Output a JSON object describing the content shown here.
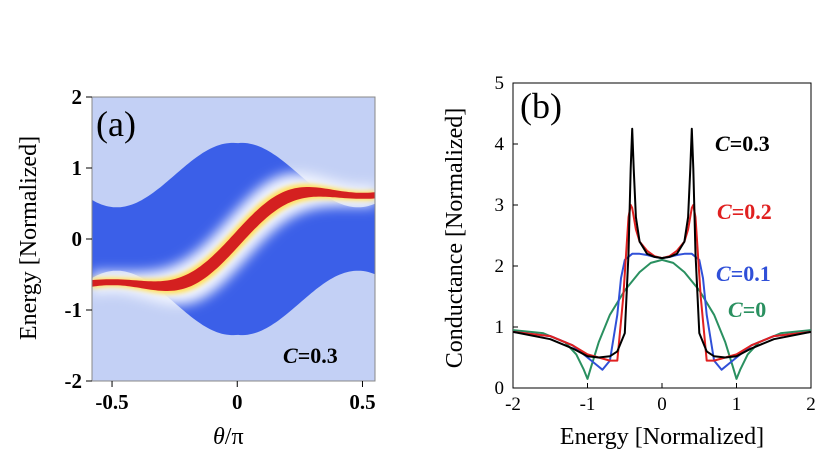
{
  "chart_data": [
    {
      "type": "heatmap",
      "panel_label": "(a)",
      "annotation_italic": "C",
      "annotation_rest": "=0.3",
      "xlabel_italic": "θ",
      "xlabel_rest": "/π",
      "ylabel": "Energy [Normalized]",
      "xlim": [
        -0.58,
        0.55
      ],
      "ylim": [
        -2,
        2
      ],
      "xticks": [
        "-0.5",
        "0",
        "0.5"
      ],
      "xtick_values": [
        -0.5,
        0,
        0.5
      ],
      "yticks": [
        "-2",
        "-1",
        "0",
        "1",
        "2"
      ],
      "ytick_values": [
        -2,
        -1,
        0,
        1,
        2
      ],
      "colors": {
        "low": "#3b5fe8",
        "mid": "#ffffff",
        "high": "#d42020",
        "warm": "#ffe060"
      }
    },
    {
      "type": "line",
      "panel_label": "(b)",
      "xlabel": "Energy [Normalized]",
      "ylabel": "Conductance  [Normalized]",
      "xlim": [
        -2,
        2
      ],
      "ylim": [
        0,
        5
      ],
      "xticks": [
        "-2",
        "-1",
        "0",
        "1",
        "2"
      ],
      "xtick_values": [
        -2,
        -1,
        0,
        1,
        2
      ],
      "yticks": [
        "0",
        "1",
        "2",
        "3",
        "4",
        "5"
      ],
      "ytick_values": [
        0,
        1,
        2,
        3,
        4,
        5
      ],
      "series": [
        {
          "name": "C=0.3",
          "label_italic": "C",
          "label_rest": "=0.3",
          "color": "#000000",
          "x": [
            -2,
            -1.5,
            -1.2,
            -1.0,
            -0.85,
            -0.7,
            -0.6,
            -0.5,
            -0.45,
            -0.42,
            -0.4,
            -0.38,
            -0.35,
            -0.3,
            -0.2,
            -0.1,
            0,
            0.1,
            0.2,
            0.3,
            0.35,
            0.38,
            0.4,
            0.42,
            0.45,
            0.5,
            0.6,
            0.7,
            0.85,
            1.0,
            1.2,
            1.5,
            2
          ],
          "values": [
            0.92,
            0.8,
            0.65,
            0.52,
            0.5,
            0.52,
            0.6,
            0.9,
            2.2,
            3.6,
            4.25,
            3.6,
            2.8,
            2.4,
            2.2,
            2.15,
            2.13,
            2.15,
            2.2,
            2.4,
            2.8,
            3.6,
            4.25,
            3.6,
            2.2,
            0.9,
            0.6,
            0.52,
            0.5,
            0.52,
            0.65,
            0.8,
            0.92
          ]
        },
        {
          "name": "C=0.2",
          "label_italic": "C",
          "label_rest": "=0.2",
          "color": "#e02020",
          "x": [
            -2,
            -1.5,
            -1.2,
            -1.0,
            -0.85,
            -0.7,
            -0.6,
            -0.52,
            -0.45,
            -0.42,
            -0.4,
            -0.35,
            -0.3,
            -0.2,
            -0.1,
            0,
            0.1,
            0.2,
            0.3,
            0.35,
            0.4,
            0.42,
            0.45,
            0.52,
            0.6,
            0.7,
            0.85,
            1.0,
            1.2,
            1.5,
            2
          ],
          "values": [
            0.92,
            0.85,
            0.7,
            0.55,
            0.5,
            0.45,
            0.45,
            1.5,
            2.8,
            3.0,
            2.95,
            2.6,
            2.4,
            2.25,
            2.16,
            2.13,
            2.16,
            2.25,
            2.4,
            2.6,
            2.95,
            3.0,
            2.8,
            1.5,
            0.45,
            0.45,
            0.5,
            0.55,
            0.7,
            0.85,
            0.92
          ]
        },
        {
          "name": "C=0.1",
          "label_italic": "C",
          "label_rest": "=0.1",
          "color": "#3050d8",
          "x": [
            -2,
            -1.5,
            -1.2,
            -1.0,
            -0.9,
            -0.8,
            -0.7,
            -0.6,
            -0.55,
            -0.5,
            -0.4,
            -0.3,
            -0.2,
            -0.1,
            0,
            0.1,
            0.2,
            0.3,
            0.4,
            0.5,
            0.55,
            0.6,
            0.7,
            0.8,
            0.9,
            1.0,
            1.2,
            1.5,
            2
          ],
          "values": [
            0.92,
            0.85,
            0.7,
            0.5,
            0.4,
            0.3,
            0.45,
            1.2,
            1.8,
            2.1,
            2.2,
            2.2,
            2.18,
            2.15,
            2.13,
            2.15,
            2.18,
            2.2,
            2.2,
            2.1,
            1.8,
            1.2,
            0.45,
            0.3,
            0.4,
            0.5,
            0.7,
            0.85,
            0.92
          ]
        },
        {
          "name": "C=0",
          "label_italic": "C",
          "label_rest": "=0",
          "color": "#2a9060",
          "x": [
            -2,
            -1.6,
            -1.3,
            -1.15,
            -1.05,
            -1.0,
            -0.95,
            -0.85,
            -0.7,
            -0.5,
            -0.3,
            -0.15,
            0,
            0.15,
            0.3,
            0.5,
            0.7,
            0.85,
            0.95,
            1.0,
            1.05,
            1.15,
            1.3,
            1.6,
            2
          ],
          "values": [
            0.95,
            0.9,
            0.75,
            0.55,
            0.3,
            0.15,
            0.35,
            0.75,
            1.2,
            1.6,
            1.9,
            2.05,
            2.1,
            2.05,
            1.9,
            1.6,
            1.2,
            0.75,
            0.35,
            0.15,
            0.3,
            0.55,
            0.75,
            0.9,
            0.95
          ]
        }
      ]
    }
  ]
}
